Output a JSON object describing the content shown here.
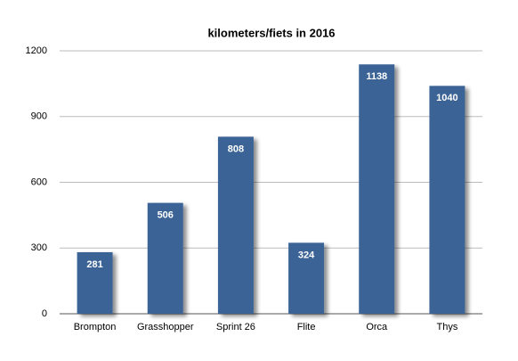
{
  "chart_data": {
    "type": "bar",
    "title": "kilometers/fiets in 2016",
    "categories": [
      "Brompton",
      "Grasshopper",
      "Sprint 26",
      "Flite",
      "Orca",
      "Thys"
    ],
    "values": [
      281,
      506,
      808,
      324,
      1138,
      1040
    ],
    "color": "#3b6496",
    "ylim": [
      0,
      1200
    ],
    "yticks": [
      0,
      300,
      600,
      900,
      1200
    ],
    "grid": true
  }
}
